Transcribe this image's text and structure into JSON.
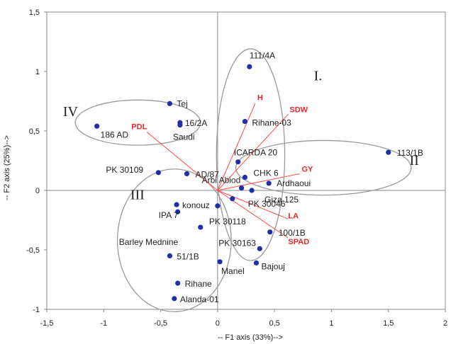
{
  "chart_data": {
    "type": "scatter",
    "subtype": "pca-biplot",
    "xlabel": "-- F1 axis (33%)-->",
    "ylabel": "-- F2 axis (25%)-->",
    "xlim": [
      -1.5,
      2
    ],
    "ylim": [
      -1,
      1.5
    ],
    "xticks": [
      -1.5,
      -1,
      -0.5,
      0,
      0.5,
      1,
      1.5,
      2
    ],
    "xtick_labels": [
      "-1,5",
      "-1",
      "-0,5",
      "0",
      "0,5",
      "1",
      "1,5",
      "2"
    ],
    "yticks": [
      -1,
      -0.5,
      0,
      0.5,
      1,
      1.5
    ],
    "ytick_labels": [
      "-1",
      "-0,5",
      "0",
      "0,5",
      "1",
      "1,5"
    ],
    "grid": false,
    "colors": {
      "point": "#1f2fa8",
      "vector": "#ff4b4b",
      "variable_text": "#e8262b",
      "ellipse": "#9a9a9a",
      "axis": "#8a8a8a"
    },
    "points": [
      {
        "label": "111/4A",
        "x": 0.28,
        "y": 1.04
      },
      {
        "label": "Tej",
        "x": -0.42,
        "y": 0.73
      },
      {
        "label": "16/2A",
        "x": -0.33,
        "y": 0.57
      },
      {
        "label": "Saudi",
        "x": -0.33,
        "y": 0.55
      },
      {
        "label": "186 AD",
        "x": -1.06,
        "y": 0.54
      },
      {
        "label": "Rihane-03",
        "x": 0.24,
        "y": 0.58
      },
      {
        "label": "ICARDA 20",
        "x": 0.18,
        "y": 0.24
      },
      {
        "label": "113/1B",
        "x": 1.5,
        "y": 0.32
      },
      {
        "label": "PK 30109",
        "x": -0.52,
        "y": 0.15
      },
      {
        "label": "AD/87",
        "x": -0.27,
        "y": 0.14
      },
      {
        "label": "CHK 6",
        "x": 0.24,
        "y": 0.11
      },
      {
        "label": "Ardhaoui",
        "x": 0.45,
        "y": 0.06
      },
      {
        "label": "Arbi Abiod",
        "x": 0.21,
        "y": 0.02
      },
      {
        "label": "Giza 125",
        "x": 0.3,
        "y": 0.0
      },
      {
        "label": "konouz",
        "x": -0.36,
        "y": -0.12
      },
      {
        "label": "IPA 7",
        "x": -0.35,
        "y": -0.18
      },
      {
        "label": "PK 30118",
        "x": 0.0,
        "y": -0.13
      },
      {
        "label": "PK 30046",
        "x": 0.13,
        "y": -0.07
      },
      {
        "label": "Barley Mednine",
        "x": -0.15,
        "y": -0.31
      },
      {
        "label": "100/1B",
        "x": 0.46,
        "y": -0.35
      },
      {
        "label": "PK 30163",
        "x": 0.37,
        "y": -0.49
      },
      {
        "label": "51/1B",
        "x": -0.42,
        "y": -0.55
      },
      {
        "label": "Bajouj",
        "x": 0.34,
        "y": -0.61
      },
      {
        "label": "Manel",
        "x": 0.02,
        "y": -0.6
      },
      {
        "label": "Rihane",
        "x": -0.35,
        "y": -0.78
      },
      {
        "label": "Alanda-01",
        "x": -0.38,
        "y": -0.91
      }
    ],
    "variables": [
      {
        "label": "PDL",
        "x": -0.62,
        "y": 0.49
      },
      {
        "label": "H",
        "x": 0.33,
        "y": 0.73
      },
      {
        "label": "SDW",
        "x": 0.62,
        "y": 0.64
      },
      {
        "label": "GY",
        "x": 0.72,
        "y": 0.14
      },
      {
        "label": "LA",
        "x": 0.62,
        "y": -0.24
      },
      {
        "label": "SPAD",
        "x": 0.62,
        "y": -0.4
      }
    ],
    "groups": [
      {
        "label": "I.",
        "cx": 0.29,
        "cy": 0.3,
        "rx": 0.3,
        "ry": 0.89
      },
      {
        "label": "II",
        "cx": 0.93,
        "cy": 0.19,
        "rx": 0.77,
        "ry": 0.23
      },
      {
        "label": "III",
        "cx": -0.38,
        "cy": -0.42,
        "rx": 0.5,
        "ry": 0.6
      },
      {
        "label": "IV",
        "cx": -0.7,
        "cy": 0.57,
        "rx": 0.55,
        "ry": 0.19
      }
    ]
  }
}
